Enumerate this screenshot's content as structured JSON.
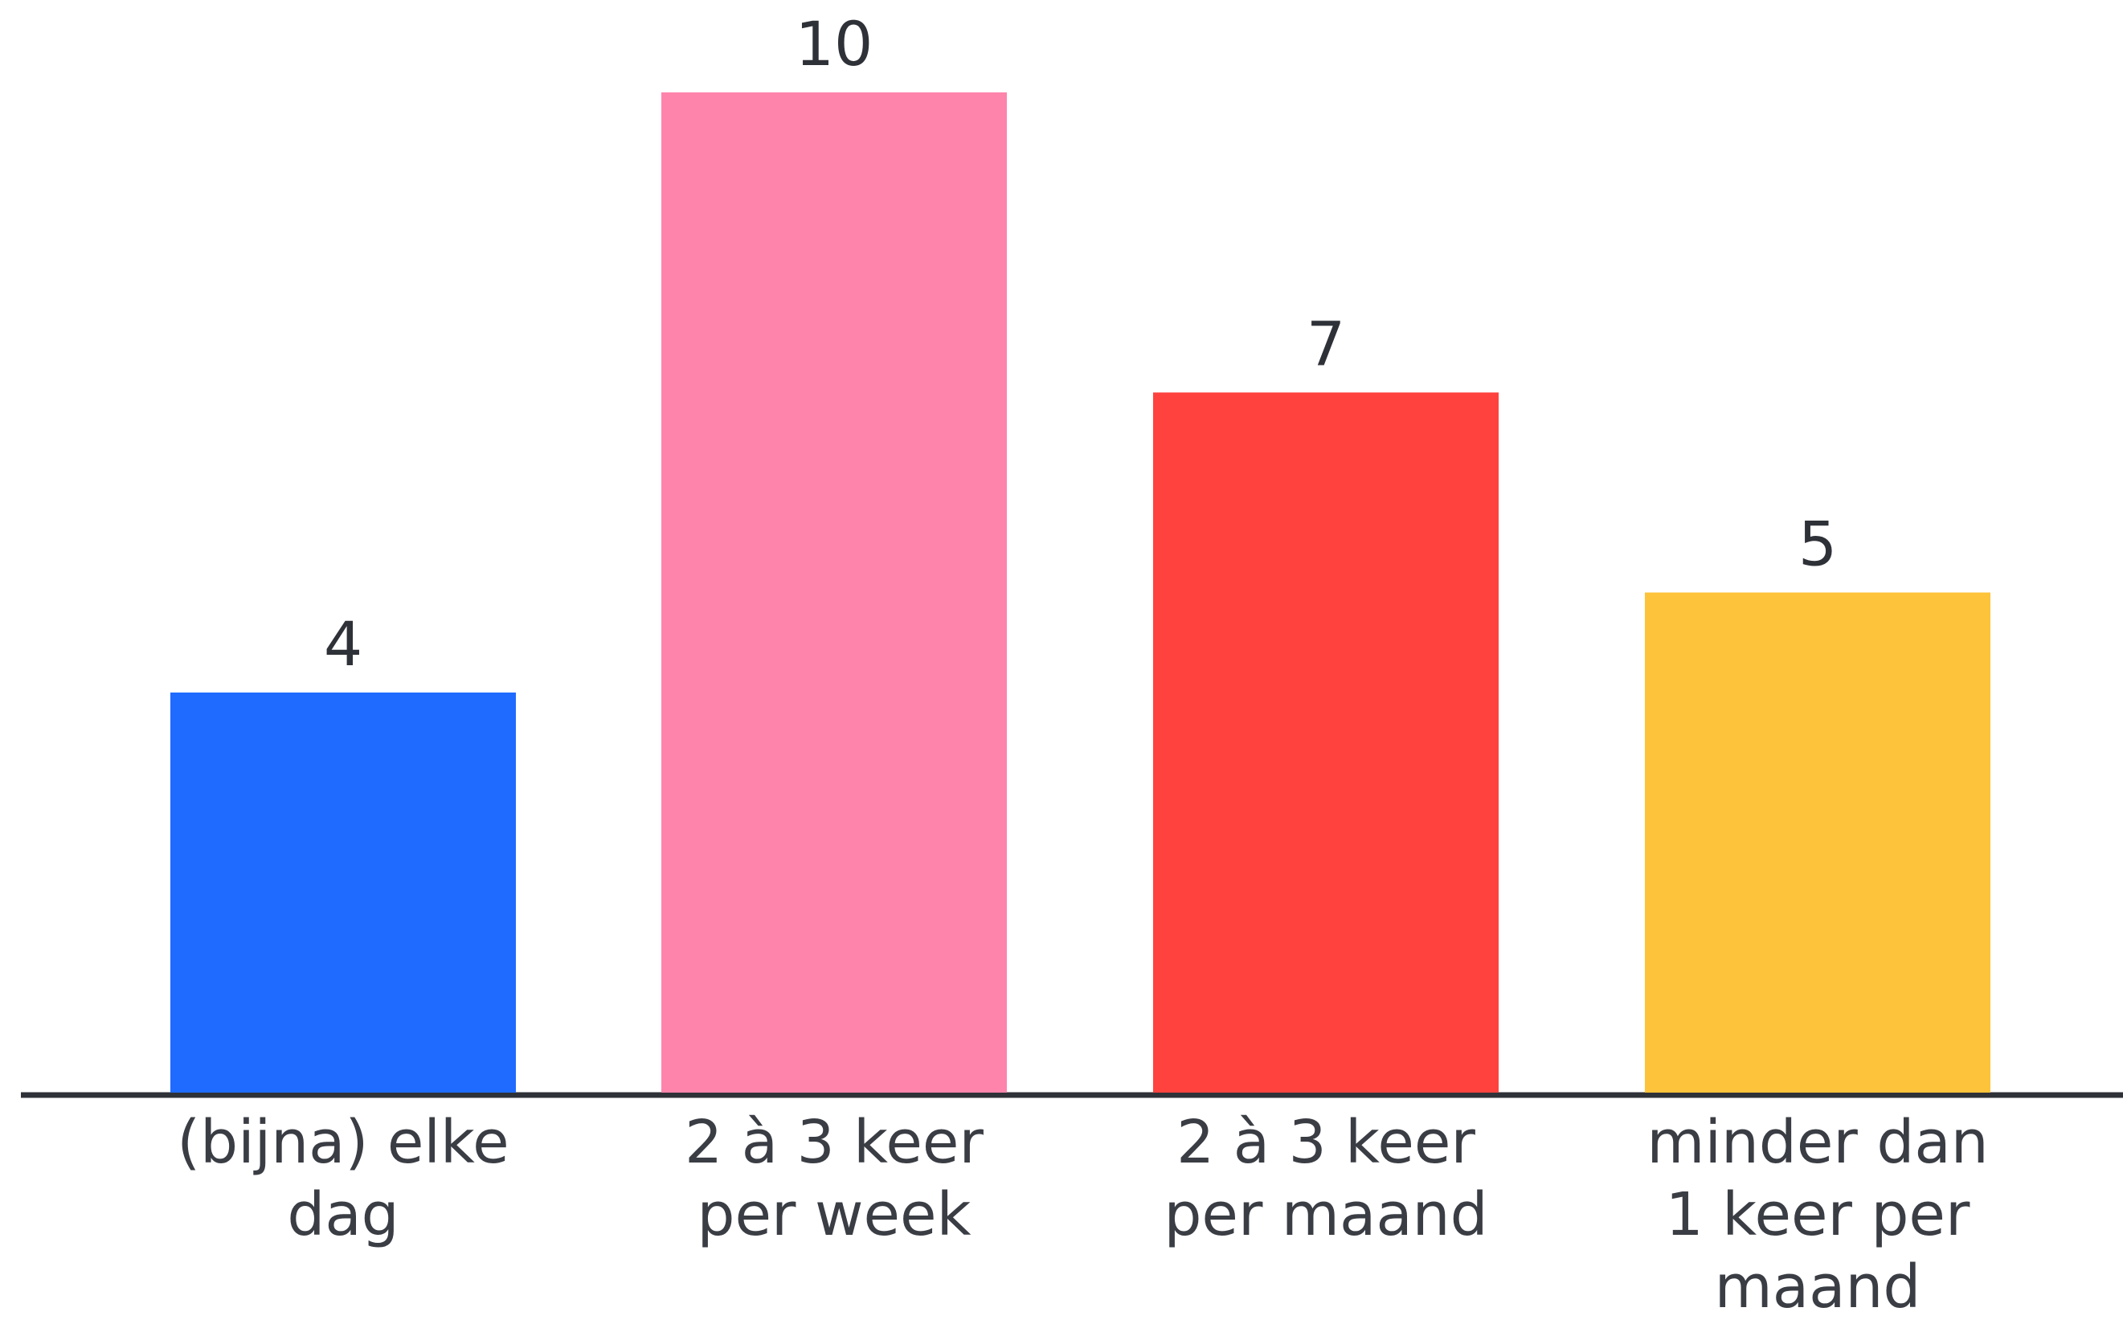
{
  "chart_data": {
    "type": "bar",
    "categories": [
      [
        "(bijna) elke",
        "dag"
      ],
      [
        "2 à 3 keer",
        "per week"
      ],
      [
        "2 à 3 keer",
        "per maand"
      ],
      [
        "minder dan",
        "1 keer per",
        "maand"
      ]
    ],
    "values": [
      4,
      10,
      7,
      5
    ],
    "value_labels": [
      "4",
      "10",
      "7",
      "5"
    ],
    "colors": [
      "#1F6BFF",
      "#FF84AC",
      "#FF423E",
      "#FDC33A"
    ],
    "ylim": [
      0,
      10
    ],
    "grid": false,
    "legend": "none",
    "axis_color": "#2F3138"
  }
}
